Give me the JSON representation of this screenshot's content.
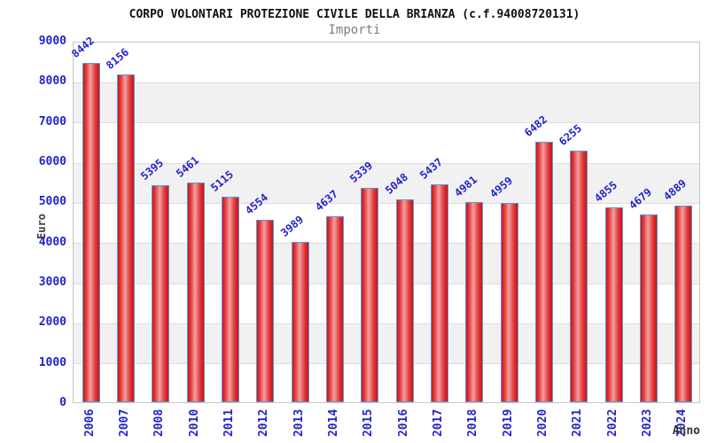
{
  "chart_data": {
    "type": "bar",
    "title": "CORPO VOLONTARI PROTEZIONE CIVILE DELLA BRIANZA (c.f.94008720131)",
    "subtitle": "Importi",
    "xlabel": "Anno",
    "ylabel": "Euro",
    "categories": [
      "2006",
      "2007",
      "2008",
      "2010",
      "2011",
      "2012",
      "2013",
      "2014",
      "2015",
      "2016",
      "2017",
      "2018",
      "2019",
      "2020",
      "2021",
      "2022",
      "2023",
      "2024"
    ],
    "values": [
      8442,
      8156,
      5395,
      5461,
      5115,
      4554,
      3989,
      4637,
      5339,
      5048,
      5437,
      4981,
      4959,
      6482,
      6255,
      4855,
      4679,
      4889
    ],
    "ylim": [
      0,
      9000
    ],
    "ytick_step": 1000,
    "grid": true,
    "alternating_bands": true,
    "legend_position": "none",
    "colors": {
      "bar_gradient_edge": "#cf1418",
      "bar_gradient_mid": "#f2a0a0",
      "bar_border": "#5b9bd5",
      "tick_label": "#2323cd",
      "value_label": "#2323cd",
      "axis_title": "#3c3c3c",
      "title": "#111111",
      "subtitle": "#7d7d7d",
      "band_fill": "#f1f1f1",
      "gridline": "#dcdcdc",
      "plot_border": "#c6c6c6"
    }
  }
}
